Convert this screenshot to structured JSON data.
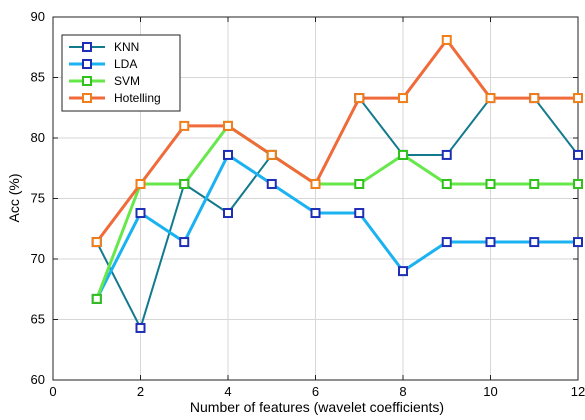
{
  "chart_data": {
    "type": "line",
    "title": "",
    "xlabel": "Number of features (wavelet coefficients)",
    "ylabel": "Acc (%)",
    "xlim": [
      0,
      12
    ],
    "ylim": [
      60,
      90
    ],
    "xticks": [
      0,
      2,
      4,
      6,
      8,
      10,
      12
    ],
    "yticks": [
      60,
      65,
      70,
      75,
      80,
      85,
      90
    ],
    "grid": true,
    "legend_position": "top-left",
    "x": [
      1,
      2,
      3,
      4,
      5,
      6,
      7,
      8,
      9,
      10,
      11,
      12
    ],
    "series": [
      {
        "name": "KNN",
        "line_color": "#137a8e",
        "values": [
          71.4,
          64.3,
          76.2,
          73.8,
          78.6,
          76.2,
          83.3,
          78.6,
          78.6,
          83.3,
          83.3,
          78.6
        ]
      },
      {
        "name": "LDA",
        "line_color": "#1ab2f0",
        "values": [
          66.7,
          73.8,
          71.4,
          78.6,
          76.2,
          73.8,
          73.8,
          69.0,
          71.4,
          71.4,
          71.4,
          71.4
        ]
      },
      {
        "name": "SVM",
        "line_color": "#66e84a",
        "values": [
          66.7,
          76.2,
          76.2,
          81.0,
          78.6,
          76.2,
          76.2,
          78.6,
          76.2,
          76.2,
          76.2,
          76.2
        ]
      },
      {
        "name": "Hotelling",
        "line_color": "#f06a3a",
        "values": [
          71.4,
          76.2,
          81.0,
          81.0,
          78.6,
          76.2,
          83.3,
          83.3,
          88.1,
          83.3,
          83.3,
          83.3
        ]
      }
    ],
    "marker_colors": {
      "KNN": "#1f2fb5",
      "LDA": "#1f2fb5",
      "SVM": "#30c11b",
      "Hotelling": "#f07e19"
    }
  }
}
